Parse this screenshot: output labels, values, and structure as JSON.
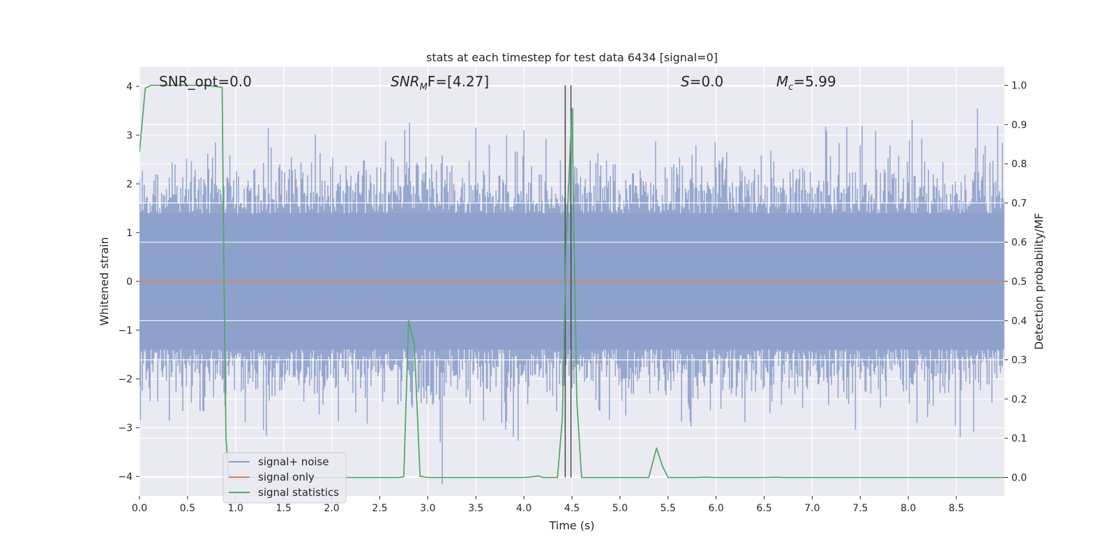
{
  "chart_data": {
    "type": "line",
    "title": "stats at each timestep for test data 6434 [signal=0]",
    "xlabel": "Time (s)",
    "ylabel": "Whitened strain",
    "ylabel_right": "Detection probability/MF",
    "xlim": [
      0.0,
      9.0
    ],
    "ylim": [
      -4.4,
      4.4
    ],
    "ylim_right": [
      -0.047,
      1.047
    ],
    "x_ticks": [
      "0.0",
      "0.5",
      "1.0",
      "1.5",
      "2.0",
      "2.5",
      "3.0",
      "3.5",
      "4.0",
      "4.5",
      "5.0",
      "5.5",
      "6.0",
      "6.5",
      "7.0",
      "7.5",
      "8.0",
      "8.5"
    ],
    "y_ticks": [
      "4",
      "3",
      "2",
      "1",
      "0",
      "−1",
      "−2",
      "−3",
      "−4"
    ],
    "y_right_ticks": [
      "1.0",
      "0.9",
      "0.8",
      "0.7",
      "0.6",
      "0.5",
      "0.4",
      "0.3",
      "0.2",
      "0.1",
      "0.0"
    ],
    "annotations": {
      "snr_opt": "SNR_opt=0.0",
      "snr_mf_base": "SNR",
      "snr_mf_sub": "M",
      "snr_mf_rest": "F=[4.27]",
      "s_italic": "S",
      "s_rest": "=0.0",
      "mc_base": "M",
      "mc_sub": "c",
      "mc_rest": "=5.99"
    },
    "legend": {
      "placement": "lower-left",
      "entries": [
        "signal+ noise",
        "signal only",
        "signal statistics"
      ]
    },
    "colors": {
      "noise": "#8da0cb",
      "signal": "#dd8452",
      "stats": "#55a868",
      "vline": "#4d4d4d",
      "plot_bg": "#eaeaf2",
      "grid": "#ffffff"
    },
    "series": [
      {
        "name": "signal statistics",
        "axis": "right",
        "x": [
          0.0,
          0.06,
          0.12,
          0.2,
          0.3,
          0.5,
          0.7,
          0.86,
          0.88,
          0.9,
          0.93,
          1.0,
          1.5,
          2.0,
          2.5,
          2.7,
          2.75,
          2.8,
          2.86,
          2.92,
          3.0,
          3.5,
          4.0,
          4.1,
          4.15,
          4.2,
          4.35,
          4.4,
          4.44,
          4.5,
          4.55,
          4.6,
          4.65,
          5.0,
          5.3,
          5.38,
          5.44,
          5.5,
          5.8,
          5.9,
          6.0,
          6.5,
          6.6,
          6.7,
          7.0,
          8.0,
          9.0
        ],
        "y": [
          0.83,
          0.993,
          1.0,
          1.0,
          1.0,
          1.0,
          1.0,
          0.995,
          0.5,
          0.1,
          0.0,
          0.0,
          0.0,
          0.0,
          0.0,
          0.0,
          0.002,
          0.4,
          0.34,
          0.003,
          0.0,
          0.0,
          0.0,
          0.002,
          0.004,
          0.0,
          0.0,
          0.15,
          0.6,
          0.94,
          0.2,
          0.0,
          0.0,
          0.0,
          0.0,
          0.075,
          0.03,
          0.0,
          0.0,
          0.001,
          0.0,
          0.0,
          0.001,
          0.0,
          0.0,
          0.0,
          0.0
        ]
      },
      {
        "name": "signal only",
        "axis": "left",
        "x": [
          0.0,
          9.0
        ],
        "y": [
          0.0,
          0.0
        ]
      }
    ],
    "noise_envelope": {
      "name": "signal+ noise",
      "x_step": 0.01,
      "amplitude": 1.0,
      "seed": 6434
    },
    "vertical_lines_x": [
      4.43,
      4.49
    ]
  }
}
